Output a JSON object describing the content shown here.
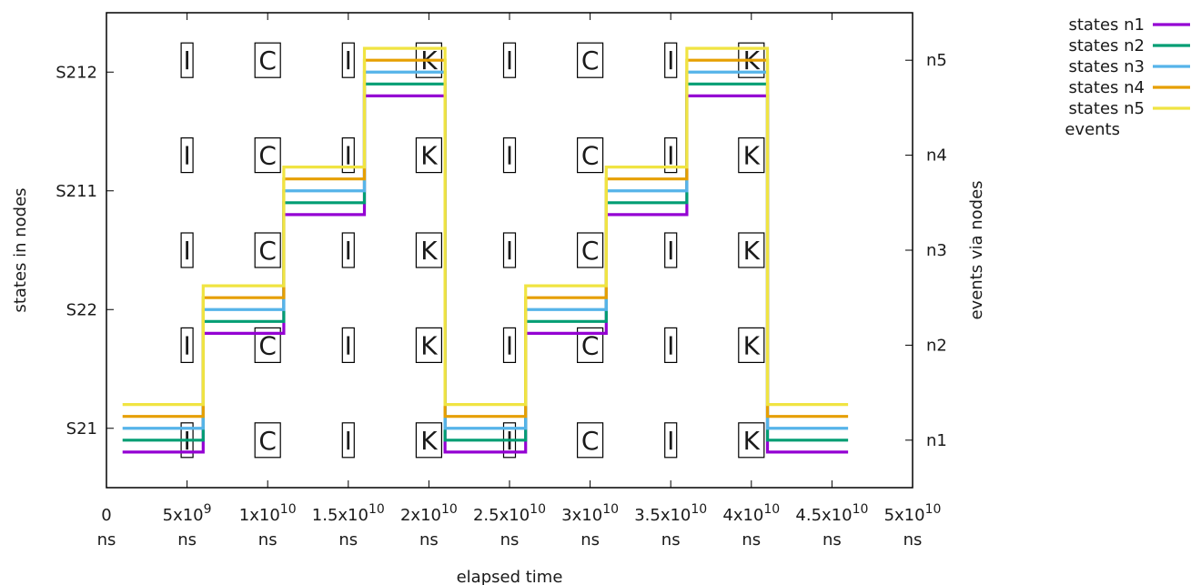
{
  "chart_data": {
    "type": "line",
    "xlabel": "elapsed time",
    "ylabel_left": "states in nodes",
    "ylabel_right": "events via nodes",
    "xlim": [
      0,
      50000000000
    ],
    "ylim": [
      -0.5,
      3.5
    ],
    "x_ticks": [
      {
        "value": 0,
        "label": "0",
        "unit": "ns"
      },
      {
        "value": 5000000000,
        "label": "5x10",
        "exp": "9",
        "unit": "ns"
      },
      {
        "value": 10000000000,
        "label": "1x10",
        "exp": "10",
        "unit": "ns"
      },
      {
        "value": 15000000000,
        "label": "1.5x10",
        "exp": "10",
        "unit": "ns"
      },
      {
        "value": 20000000000,
        "label": "2x10",
        "exp": "10",
        "unit": "ns"
      },
      {
        "value": 25000000000,
        "label": "2.5x10",
        "exp": "10",
        "unit": "ns"
      },
      {
        "value": 30000000000,
        "label": "3x10",
        "exp": "10",
        "unit": "ns"
      },
      {
        "value": 35000000000,
        "label": "3.5x10",
        "exp": "10",
        "unit": "ns"
      },
      {
        "value": 40000000000,
        "label": "4x10",
        "exp": "10",
        "unit": "ns"
      },
      {
        "value": 45000000000,
        "label": "4.5x10",
        "exp": "10",
        "unit": "ns"
      },
      {
        "value": 50000000000,
        "label": "5x10",
        "exp": "10",
        "unit": "ns"
      }
    ],
    "y_ticks_left": [
      {
        "value": 0,
        "label": "S21"
      },
      {
        "value": 1,
        "label": "S22"
      },
      {
        "value": 2,
        "label": "S211"
      },
      {
        "value": 3,
        "label": "S212"
      }
    ],
    "y_ticks_right": [
      {
        "value": -0.1,
        "label": "n1"
      },
      {
        "value": 0.7,
        "label": "n2"
      },
      {
        "value": 1.5,
        "label": "n3"
      },
      {
        "value": 2.3,
        "label": "n4"
      },
      {
        "value": 3.1,
        "label": "n5"
      }
    ],
    "series": [
      {
        "name": "states n1",
        "color": "#9400d3",
        "offset": -0.2
      },
      {
        "name": "states n2",
        "color": "#009e73",
        "offset": -0.1
      },
      {
        "name": "states n3",
        "color": "#56b4e9",
        "offset": 0.0
      },
      {
        "name": "states n4",
        "color": "#e69f00",
        "offset": 0.1
      },
      {
        "name": "states n5",
        "color": "#f0e442",
        "offset": 0.2
      }
    ],
    "state_steps": [
      {
        "x_start": 1000000000,
        "x_end": 6000000000,
        "state": 0
      },
      {
        "x_start": 6000000000,
        "x_end": 11000000000,
        "state": 1
      },
      {
        "x_start": 11000000000,
        "x_end": 16000000000,
        "state": 2
      },
      {
        "x_start": 16000000000,
        "x_end": 21000000000,
        "state": 3
      },
      {
        "x_start": 21000000000,
        "x_end": 26000000000,
        "state": 0
      },
      {
        "x_start": 26000000000,
        "x_end": 31000000000,
        "state": 1
      },
      {
        "x_start": 31000000000,
        "x_end": 36000000000,
        "state": 2
      },
      {
        "x_start": 36000000000,
        "x_end": 41000000000,
        "state": 3
      },
      {
        "x_start": 41000000000,
        "x_end": 46000000000,
        "state": 0
      }
    ],
    "events_legend": "events",
    "events": [
      {
        "x": 5000000000,
        "label": "I"
      },
      {
        "x": 10000000000,
        "label": "C"
      },
      {
        "x": 15000000000,
        "label": "I"
      },
      {
        "x": 20000000000,
        "label": "K"
      },
      {
        "x": 25000000000,
        "label": "I"
      },
      {
        "x": 30000000000,
        "label": "C"
      },
      {
        "x": 35000000000,
        "label": "I"
      },
      {
        "x": 40000000000,
        "label": "K"
      }
    ],
    "event_rows": [
      -0.1,
      0.7,
      1.5,
      2.3,
      3.1
    ]
  }
}
